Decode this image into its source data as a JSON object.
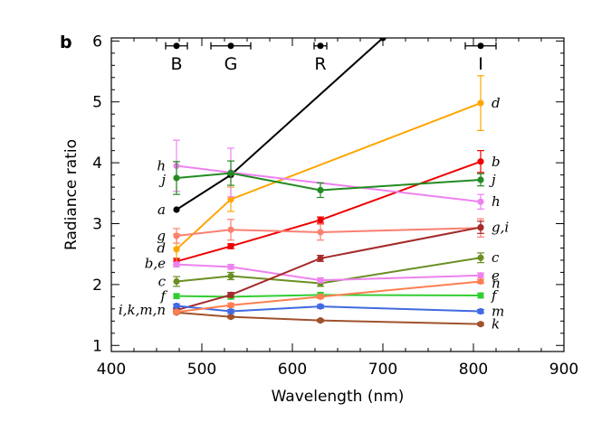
{
  "chart_data": {
    "type": "line",
    "panel_label": "b",
    "xlabel": "Wavelength (nm)",
    "ylabel": "Radiance ratio",
    "xlim": [
      400,
      900
    ],
    "ylim": [
      0.9,
      6.05
    ],
    "x_ticks": [
      400,
      500,
      600,
      700,
      800,
      900
    ],
    "y_ticks": [
      1,
      2,
      3,
      4,
      5,
      6
    ],
    "grid": false,
    "bands": [
      {
        "label": "B",
        "x": 472,
        "xerr": 12
      },
      {
        "label": "G",
        "x": 532,
        "xerr": 22
      },
      {
        "label": "R",
        "x": 631,
        "xerr": 7
      },
      {
        "label": "I",
        "x": 808,
        "xerr": 17
      }
    ],
    "band_y": 5.92,
    "series": [
      {
        "label": "a",
        "color": "#000000",
        "x": [
          472,
          532,
          700
        ],
        "y": [
          3.23,
          3.8,
          6.05
        ],
        "err": [
          0,
          0,
          0
        ],
        "label_side": "left"
      },
      {
        "label": "b",
        "color": "#ee0000",
        "x": [
          472,
          532,
          631,
          808
        ],
        "y": [
          2.38,
          2.63,
          3.06,
          4.02
        ],
        "err": [
          0.05,
          0.04,
          0.05,
          0.18
        ],
        "label_side": "both",
        "left_label": "b,e",
        "right_label": "b"
      },
      {
        "label": "c",
        "color": "#6b8e23",
        "x": [
          472,
          532,
          631,
          808
        ],
        "y": [
          2.05,
          2.14,
          2.02,
          2.44
        ],
        "err": [
          0.08,
          0.06,
          0.05,
          0.08
        ],
        "label_side": "both"
      },
      {
        "label": "d",
        "color": "#ffa500",
        "x": [
          472,
          532,
          808
        ],
        "y": [
          2.58,
          3.4,
          4.98
        ],
        "err": [
          0.25,
          0.2,
          0.45
        ],
        "label_side": "both"
      },
      {
        "label": "e",
        "color": "#ee82ee",
        "x": [
          472,
          532,
          631,
          808
        ],
        "y": [
          2.33,
          2.29,
          2.07,
          2.15
        ],
        "err": [
          0.04,
          0.04,
          0.04,
          0.04
        ],
        "label_side": "right"
      },
      {
        "label": "f",
        "color": "#32cd32",
        "x": [
          472,
          532,
          631,
          808
        ],
        "y": [
          1.81,
          1.8,
          1.83,
          1.82
        ],
        "err": [
          0.04,
          0.04,
          0.04,
          0.04
        ],
        "label_side": "both"
      },
      {
        "label": "g",
        "color": "#fa8072",
        "x": [
          472,
          532,
          631,
          808
        ],
        "y": [
          2.8,
          2.9,
          2.86,
          2.93
        ],
        "err": [
          0.12,
          0.17,
          0.13,
          0.15
        ],
        "label_side": "left",
        "right_label": "g,i"
      },
      {
        "label": "h",
        "color": "#ee82ee",
        "x": [
          472,
          532,
          808
        ],
        "y": [
          3.95,
          3.84,
          3.36
        ],
        "err": [
          0.42,
          0.4,
          0.12
        ],
        "label_side": "both"
      },
      {
        "label": "i",
        "color": "#a52a2a",
        "x": [
          472,
          532,
          631,
          808
        ],
        "y": [
          1.58,
          1.83,
          2.43,
          2.94
        ],
        "err": [
          0.03,
          0.04,
          0.05,
          0.1
        ],
        "label_side": "none"
      },
      {
        "label": "j",
        "color": "#228b22",
        "x": [
          472,
          532,
          631,
          808
        ],
        "y": [
          3.75,
          3.83,
          3.55,
          3.72
        ],
        "err": [
          0.27,
          0.2,
          0.12,
          0.1
        ],
        "label_side": "both"
      },
      {
        "label": "k",
        "color": "#a0522d",
        "x": [
          472,
          532,
          631,
          808
        ],
        "y": [
          1.54,
          1.47,
          1.41,
          1.35
        ],
        "err": [
          0.02,
          0.02,
          0.02,
          0.02
        ],
        "label_side": "right"
      },
      {
        "label": "m",
        "color": "#4169e1",
        "x": [
          472,
          532,
          631,
          808
        ],
        "y": [
          1.65,
          1.56,
          1.64,
          1.56
        ],
        "err": [
          0.03,
          0.03,
          0.03,
          0.03
        ],
        "label_side": "right"
      },
      {
        "label": "n",
        "color": "#ff7f50",
        "x": [
          472,
          532,
          631,
          808
        ],
        "y": [
          1.55,
          1.66,
          1.8,
          2.05
        ],
        "err": [
          0.03,
          0.03,
          0.03,
          0.03
        ],
        "label_side": "right",
        "left_label": "i,k,m,n"
      }
    ]
  }
}
